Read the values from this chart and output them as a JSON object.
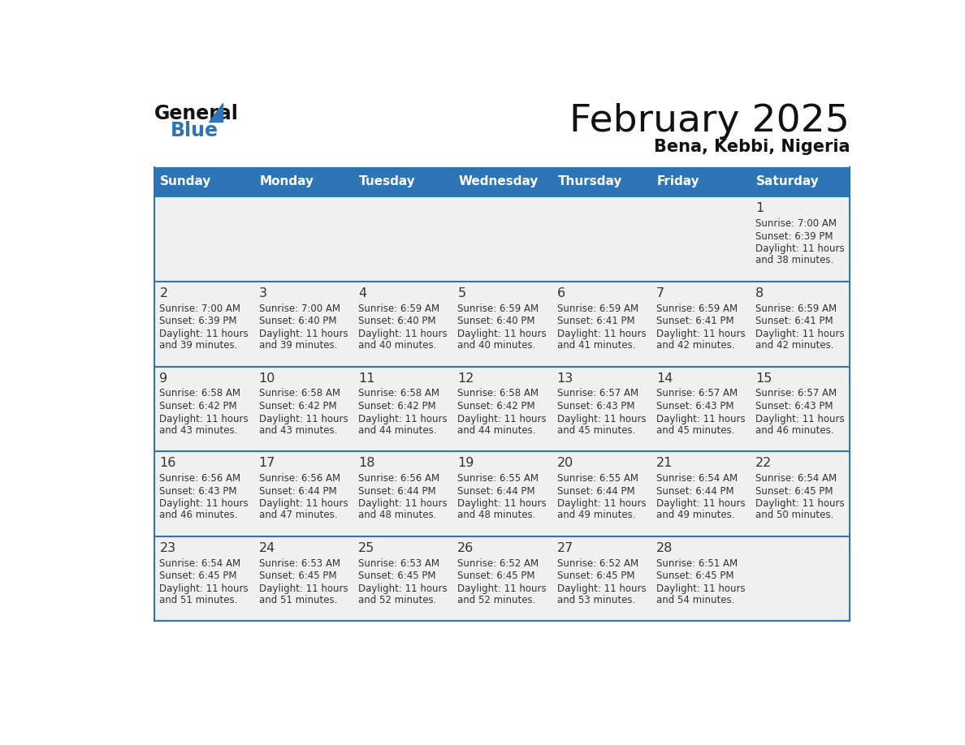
{
  "title": "February 2025",
  "subtitle": "Bena, Kebbi, Nigeria",
  "header_bg": "#2E75B6",
  "header_text_color": "#FFFFFF",
  "day_names": [
    "Sunday",
    "Monday",
    "Tuesday",
    "Wednesday",
    "Thursday",
    "Friday",
    "Saturday"
  ],
  "cell_bg_light": "#F0F0F0",
  "cell_bg_white": "#FFFFFF",
  "divider_color": "#2E75B6",
  "text_color": "#333333",
  "calendar": [
    [
      {
        "day": null,
        "sunrise": null,
        "sunset": null,
        "daylight_line1": null,
        "daylight_line2": null
      },
      {
        "day": null,
        "sunrise": null,
        "sunset": null,
        "daylight_line1": null,
        "daylight_line2": null
      },
      {
        "day": null,
        "sunrise": null,
        "sunset": null,
        "daylight_line1": null,
        "daylight_line2": null
      },
      {
        "day": null,
        "sunrise": null,
        "sunset": null,
        "daylight_line1": null,
        "daylight_line2": null
      },
      {
        "day": null,
        "sunrise": null,
        "sunset": null,
        "daylight_line1": null,
        "daylight_line2": null
      },
      {
        "day": null,
        "sunrise": null,
        "sunset": null,
        "daylight_line1": null,
        "daylight_line2": null
      },
      {
        "day": 1,
        "sunrise": "7:00 AM",
        "sunset": "6:39 PM",
        "daylight_line1": "Daylight: 11 hours",
        "daylight_line2": "and 38 minutes."
      }
    ],
    [
      {
        "day": 2,
        "sunrise": "7:00 AM",
        "sunset": "6:39 PM",
        "daylight_line1": "Daylight: 11 hours",
        "daylight_line2": "and 39 minutes."
      },
      {
        "day": 3,
        "sunrise": "7:00 AM",
        "sunset": "6:40 PM",
        "daylight_line1": "Daylight: 11 hours",
        "daylight_line2": "and 39 minutes."
      },
      {
        "day": 4,
        "sunrise": "6:59 AM",
        "sunset": "6:40 PM",
        "daylight_line1": "Daylight: 11 hours",
        "daylight_line2": "and 40 minutes."
      },
      {
        "day": 5,
        "sunrise": "6:59 AM",
        "sunset": "6:40 PM",
        "daylight_line1": "Daylight: 11 hours",
        "daylight_line2": "and 40 minutes."
      },
      {
        "day": 6,
        "sunrise": "6:59 AM",
        "sunset": "6:41 PM",
        "daylight_line1": "Daylight: 11 hours",
        "daylight_line2": "and 41 minutes."
      },
      {
        "day": 7,
        "sunrise": "6:59 AM",
        "sunset": "6:41 PM",
        "daylight_line1": "Daylight: 11 hours",
        "daylight_line2": "and 42 minutes."
      },
      {
        "day": 8,
        "sunrise": "6:59 AM",
        "sunset": "6:41 PM",
        "daylight_line1": "Daylight: 11 hours",
        "daylight_line2": "and 42 minutes."
      }
    ],
    [
      {
        "day": 9,
        "sunrise": "6:58 AM",
        "sunset": "6:42 PM",
        "daylight_line1": "Daylight: 11 hours",
        "daylight_line2": "and 43 minutes."
      },
      {
        "day": 10,
        "sunrise": "6:58 AM",
        "sunset": "6:42 PM",
        "daylight_line1": "Daylight: 11 hours",
        "daylight_line2": "and 43 minutes."
      },
      {
        "day": 11,
        "sunrise": "6:58 AM",
        "sunset": "6:42 PM",
        "daylight_line1": "Daylight: 11 hours",
        "daylight_line2": "and 44 minutes."
      },
      {
        "day": 12,
        "sunrise": "6:58 AM",
        "sunset": "6:42 PM",
        "daylight_line1": "Daylight: 11 hours",
        "daylight_line2": "and 44 minutes."
      },
      {
        "day": 13,
        "sunrise": "6:57 AM",
        "sunset": "6:43 PM",
        "daylight_line1": "Daylight: 11 hours",
        "daylight_line2": "and 45 minutes."
      },
      {
        "day": 14,
        "sunrise": "6:57 AM",
        "sunset": "6:43 PM",
        "daylight_line1": "Daylight: 11 hours",
        "daylight_line2": "and 45 minutes."
      },
      {
        "day": 15,
        "sunrise": "6:57 AM",
        "sunset": "6:43 PM",
        "daylight_line1": "Daylight: 11 hours",
        "daylight_line2": "and 46 minutes."
      }
    ],
    [
      {
        "day": 16,
        "sunrise": "6:56 AM",
        "sunset": "6:43 PM",
        "daylight_line1": "Daylight: 11 hours",
        "daylight_line2": "and 46 minutes."
      },
      {
        "day": 17,
        "sunrise": "6:56 AM",
        "sunset": "6:44 PM",
        "daylight_line1": "Daylight: 11 hours",
        "daylight_line2": "and 47 minutes."
      },
      {
        "day": 18,
        "sunrise": "6:56 AM",
        "sunset": "6:44 PM",
        "daylight_line1": "Daylight: 11 hours",
        "daylight_line2": "and 48 minutes."
      },
      {
        "day": 19,
        "sunrise": "6:55 AM",
        "sunset": "6:44 PM",
        "daylight_line1": "Daylight: 11 hours",
        "daylight_line2": "and 48 minutes."
      },
      {
        "day": 20,
        "sunrise": "6:55 AM",
        "sunset": "6:44 PM",
        "daylight_line1": "Daylight: 11 hours",
        "daylight_line2": "and 49 minutes."
      },
      {
        "day": 21,
        "sunrise": "6:54 AM",
        "sunset": "6:44 PM",
        "daylight_line1": "Daylight: 11 hours",
        "daylight_line2": "and 49 minutes."
      },
      {
        "day": 22,
        "sunrise": "6:54 AM",
        "sunset": "6:45 PM",
        "daylight_line1": "Daylight: 11 hours",
        "daylight_line2": "and 50 minutes."
      }
    ],
    [
      {
        "day": 23,
        "sunrise": "6:54 AM",
        "sunset": "6:45 PM",
        "daylight_line1": "Daylight: 11 hours",
        "daylight_line2": "and 51 minutes."
      },
      {
        "day": 24,
        "sunrise": "6:53 AM",
        "sunset": "6:45 PM",
        "daylight_line1": "Daylight: 11 hours",
        "daylight_line2": "and 51 minutes."
      },
      {
        "day": 25,
        "sunrise": "6:53 AM",
        "sunset": "6:45 PM",
        "daylight_line1": "Daylight: 11 hours",
        "daylight_line2": "and 52 minutes."
      },
      {
        "day": 26,
        "sunrise": "6:52 AM",
        "sunset": "6:45 PM",
        "daylight_line1": "Daylight: 11 hours",
        "daylight_line2": "and 52 minutes."
      },
      {
        "day": 27,
        "sunrise": "6:52 AM",
        "sunset": "6:45 PM",
        "daylight_line1": "Daylight: 11 hours",
        "daylight_line2": "and 53 minutes."
      },
      {
        "day": 28,
        "sunrise": "6:51 AM",
        "sunset": "6:45 PM",
        "daylight_line1": "Daylight: 11 hours",
        "daylight_line2": "and 54 minutes."
      },
      {
        "day": null,
        "sunrise": null,
        "sunset": null,
        "daylight_line1": null,
        "daylight_line2": null
      }
    ]
  ]
}
